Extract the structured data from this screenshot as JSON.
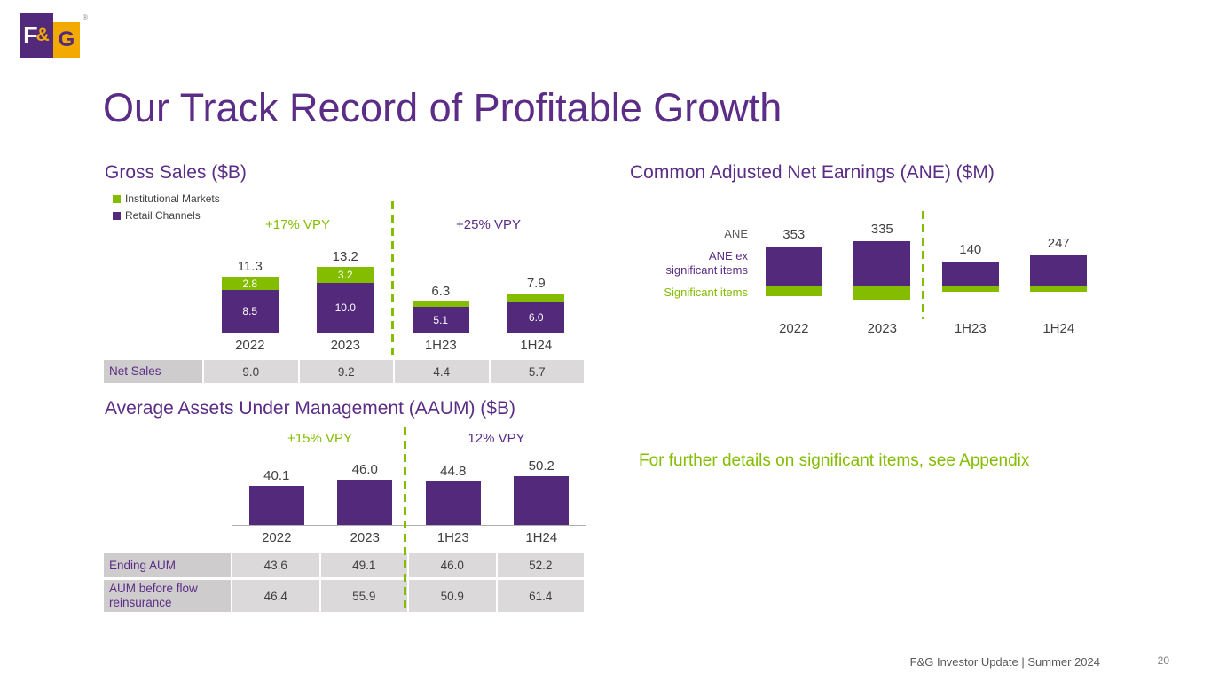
{
  "slide": {
    "title": "Our Track Record of Profitable Growth",
    "logo": {
      "f": "F",
      "amp": "&",
      "g": "G",
      "registered": "®"
    },
    "footer_text": "F&G Investor Update | Summer 2024",
    "page_number": "20"
  },
  "colors": {
    "brand_purple": "#5B2D86",
    "bar_purple": "#53297B",
    "brand_green": "#84BD00",
    "logo_gold": "#F2A900",
    "table_gray": "#DBD9D9",
    "text_gray": "#404040"
  },
  "notes": {
    "appendix": "For further details on significant items, see Appendix"
  },
  "chart_data": [
    {
      "id": "gross_sales",
      "type": "bar",
      "stacked": true,
      "title": "Gross Sales ($B)",
      "categories": [
        "2022",
        "2023",
        "1H23",
        "1H24"
      ],
      "series": [
        {
          "name": "Institutional Markets",
          "color": "#84BD00",
          "values": [
            2.8,
            3.2,
            1.2,
            1.9
          ],
          "bar_labels": [
            "2.8",
            "3.2",
            "",
            ""
          ]
        },
        {
          "name": "Retail Channels",
          "color": "#53297B",
          "values": [
            8.5,
            10.0,
            5.1,
            6.0
          ],
          "bar_labels": [
            "8.5",
            "10.0",
            "5.1",
            "6.0"
          ]
        }
      ],
      "totals": [
        11.3,
        13.2,
        6.3,
        7.9
      ],
      "total_labels": [
        "11.3",
        "13.2",
        "6.3",
        "7.9"
      ],
      "annotations": [
        {
          "text": "+17% VPY",
          "color": "#84BD00"
        },
        {
          "text": "+25% VPY",
          "color": "#5B2D86"
        }
      ],
      "table": {
        "row_label": "Net Sales",
        "values": [
          "9.0",
          "9.2",
          "4.4",
          "5.7"
        ]
      }
    },
    {
      "id": "ane",
      "type": "bar",
      "title": "Common Adjusted Net Earnings (ANE) ($M)",
      "categories": [
        "2022",
        "2023",
        "1H23",
        "1H24"
      ],
      "axis_side_labels": [
        {
          "text": "ANE",
          "color": "#595959"
        },
        {
          "text": "ANE ex\nsignificant items",
          "color": "#5B2D86"
        },
        {
          "text": "Significant items",
          "color": "#84BD00"
        }
      ],
      "ane_labels": [
        "353",
        "335",
        "140",
        "247"
      ],
      "ane_values": [
        353,
        335,
        140,
        247
      ],
      "series": [
        {
          "name": "ANE ex significant items",
          "color": "#53297B",
          "estimated": true,
          "values": [
            440,
            500,
            270,
            340
          ]
        },
        {
          "name": "Significant items",
          "color": "#84BD00",
          "estimated": true,
          "values": [
            -120,
            -160,
            -70,
            -70
          ]
        }
      ]
    },
    {
      "id": "aaum",
      "type": "bar",
      "title": "Average Assets Under Management (AAUM) ($B)",
      "categories": [
        "2022",
        "2023",
        "1H23",
        "1H24"
      ],
      "values": [
        40.1,
        46.0,
        44.8,
        50.2
      ],
      "value_labels": [
        "40.1",
        "46.0",
        "44.8",
        "50.2"
      ],
      "annotations": [
        {
          "text": "+15% VPY",
          "color": "#84BD00"
        },
        {
          "text": "12% VPY",
          "color": "#5B2D86"
        }
      ],
      "tables": [
        {
          "row_label": "Ending AUM",
          "values": [
            "43.6",
            "49.1",
            "46.0",
            "52.2"
          ]
        },
        {
          "row_label": "AUM before flow reinsurance",
          "values": [
            "46.4",
            "55.9",
            "50.9",
            "61.4"
          ]
        }
      ]
    }
  ]
}
